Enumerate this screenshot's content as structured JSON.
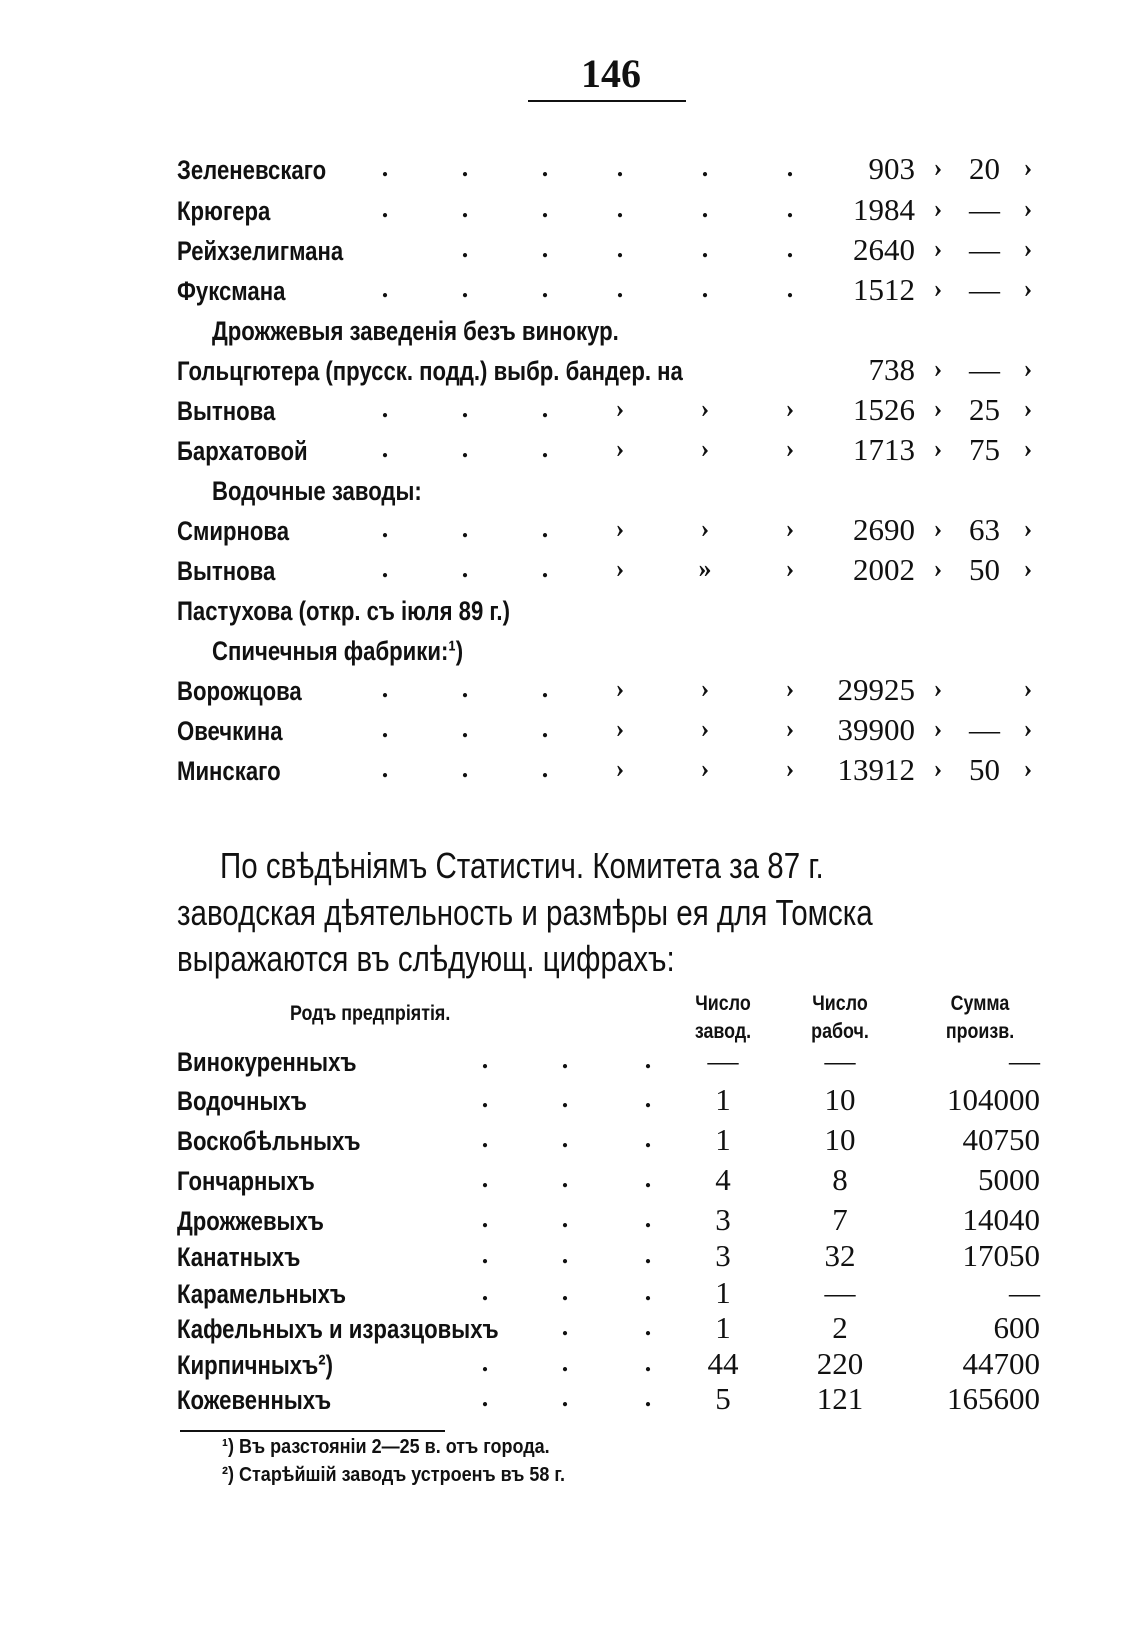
{
  "page_number": "146",
  "list": [
    {
      "name": "Зеленевскаго",
      "m": [
        ".",
        ".",
        ".",
        ".",
        ".",
        "."
      ],
      "v1": "903",
      "v2": "20"
    },
    {
      "name": "Крюгера",
      "m": [
        ".",
        ".",
        ".",
        ".",
        ".",
        "."
      ],
      "v1": "1984",
      "v2": "—"
    },
    {
      "name": "Рейхзелигмана",
      "m": [
        "",
        ".",
        ".",
        ".",
        ".",
        "."
      ],
      "v1": "2640",
      "v2": "—"
    },
    {
      "name": "Фуксмана",
      "m": [
        ".",
        ".",
        ".",
        ".",
        ".",
        "."
      ],
      "v1": "1512",
      "v2": "—"
    },
    {
      "heading": "Дрожжевыя заведенія безъ винокур."
    },
    {
      "name": "Гольцгютера (прусск. подд.) выбр. бандер. на",
      "m": [],
      "v1": "738",
      "v2": "—"
    },
    {
      "name": "Вытнова",
      "m": [
        ".",
        ".",
        ".",
        "›",
        "›",
        "›"
      ],
      "v1": "1526",
      "v2": "25"
    },
    {
      "name": "Бархатовой",
      "m": [
        ".",
        ".",
        ".",
        "›",
        "›",
        "›"
      ],
      "v1": "1713",
      "v2": "75"
    },
    {
      "heading": "Водочные заводы:"
    },
    {
      "name": "Смирнова",
      "m": [
        ".",
        ".",
        ".",
        "›",
        "›",
        "›"
      ],
      "v1": "2690",
      "v2": "63"
    },
    {
      "name": "Вытнова",
      "m": [
        ".",
        ".",
        ".",
        "›",
        "»",
        "›"
      ],
      "v1": "2002",
      "v2": "50"
    },
    {
      "name": "Пастухова (откр. съ іюля 89 г.)",
      "m": [],
      "v1": "",
      "v2": "",
      "nomarks": true
    },
    {
      "heading": "Спичечныя фабрики:¹)"
    },
    {
      "name": "Ворожцова",
      "m": [
        ".",
        ".",
        ".",
        "›",
        "›",
        "›"
      ],
      "v1": "29925",
      "v2": ""
    },
    {
      "name": "Овечкина",
      "m": [
        ".",
        ".",
        ".",
        "›",
        "›",
        "›"
      ],
      "v1": "39900",
      "v2": "—"
    },
    {
      "name": "Минскаго",
      "m": [
        ".",
        ".",
        ".",
        "›",
        "›",
        "›"
      ],
      "v1": "13912",
      "v2": "50"
    }
  ],
  "ditto": "›",
  "paragraph": [
    "По свѣдѣніямъ Статистич. Комитета за 87 г.",
    "заводская дѣятельность и размѣры ея для Томска",
    "выражаются въ слѣдующ. цифрахъ:"
  ],
  "table": {
    "headers": [
      "Родъ предпріятія.",
      "Число завод.",
      "Число рабоч.",
      "Сумма произв."
    ],
    "rows": [
      [
        "Винокуренныхъ",
        "—",
        "—",
        "—"
      ],
      [
        "Водочныхъ",
        "1",
        "10",
        "104000"
      ],
      [
        "Воскобѣльныхъ",
        "1",
        "10",
        "40750"
      ],
      [
        "Гончарныхъ",
        "4",
        "8",
        "5000"
      ],
      [
        "Дрожжевыхъ",
        "3",
        "7",
        "14040"
      ],
      [
        "Канатныхъ",
        "3",
        "32",
        "17050"
      ],
      [
        "Карамельныхъ",
        "1",
        "—",
        "—"
      ],
      [
        "Кафельныхъ и изразцовыхъ",
        "1",
        "2",
        "600"
      ],
      [
        "Кирпичныхъ²)",
        "44",
        "220",
        "44700"
      ],
      [
        "Кожевенныхъ",
        "5",
        "121",
        "165600"
      ]
    ]
  },
  "footnotes": [
    "¹) Въ разстояніи 2—25 в. отъ города.",
    "²) Старѣйшій заводъ устроенъ въ 58 г."
  ]
}
